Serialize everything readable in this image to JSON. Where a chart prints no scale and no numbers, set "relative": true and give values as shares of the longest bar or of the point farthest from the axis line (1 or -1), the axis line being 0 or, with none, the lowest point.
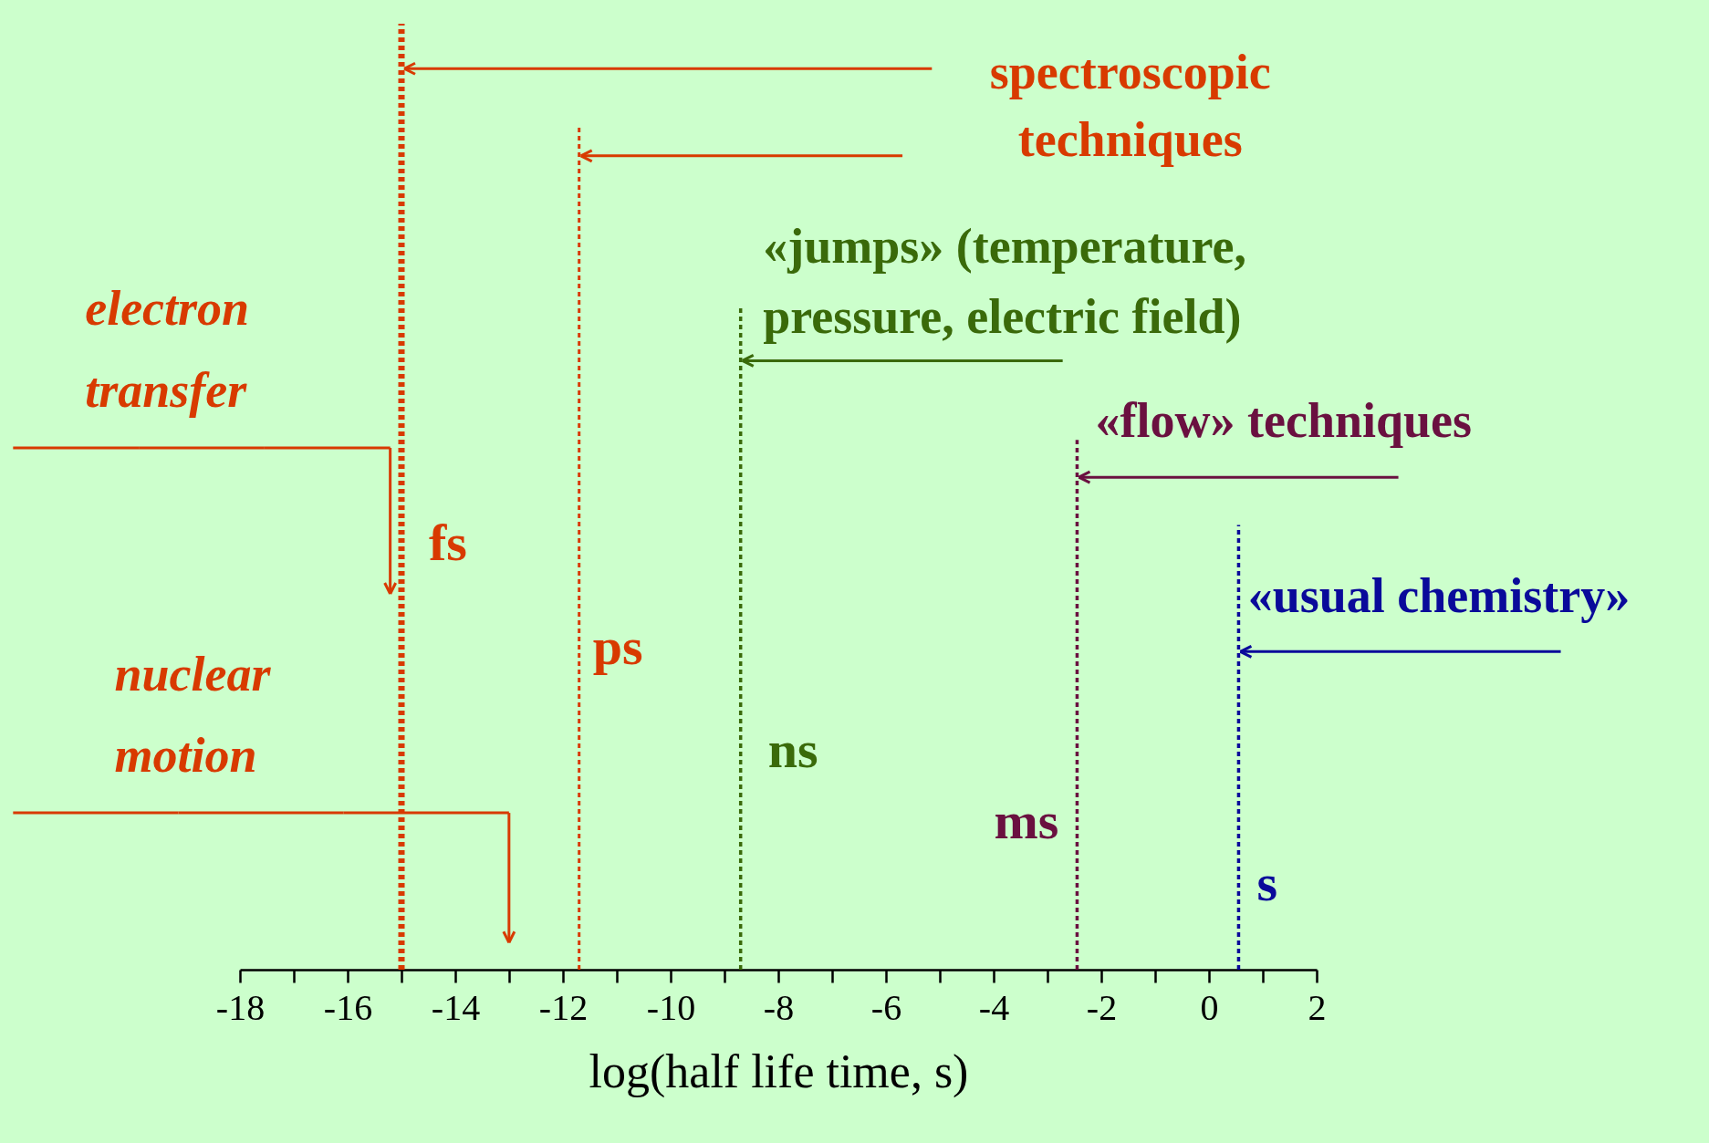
{
  "chart_data": {
    "type": "line",
    "relative": true,
    "marker": "none",
    "xlabel": "log(half life time, s)",
    "xlim": [
      -18,
      2
    ],
    "xticks": [
      -18,
      {
        "value": -17,
        "label": null
      },
      -16,
      {
        "value": -15,
        "label": null
      },
      -14,
      {
        "value": -13,
        "label": null
      },
      -12,
      {
        "value": -11,
        "label": null
      },
      -10,
      {
        "value": -9,
        "label": null
      },
      -8,
      {
        "value": -7,
        "label": null
      },
      -6,
      {
        "value": -5,
        "label": null
      },
      -4,
      {
        "value": -3,
        "label": null
      },
      -2,
      {
        "value": -1,
        "label": null
      },
      0,
      {
        "value": 1,
        "label": null
      },
      2
    ],
    "tick_labels": "x",
    "series": [
      {
        "name": "fs",
        "color": "#d83a00",
        "line_style": "dotted",
        "x": [
          -15,
          -15
        ],
        "values": [
          0,
          1
        ]
      },
      {
        "name": "ps",
        "color": "#d83a00",
        "line_style": "dotted",
        "x": [
          -11.7,
          -11.7
        ],
        "values": [
          0,
          0.89
        ]
      },
      {
        "name": "ns",
        "color": "#3a6a0a",
        "line_style": "dotted",
        "x": [
          -8.7,
          -8.7
        ],
        "values": [
          0,
          0.7
        ]
      },
      {
        "name": "ms",
        "color": "#6a1040",
        "line_style": "dotted",
        "x": [
          -2.45,
          -2.45
        ],
        "values": [
          0,
          0.56
        ]
      },
      {
        "name": "s",
        "color": "#0a0a9a",
        "line_style": "dotted",
        "x": [
          0.55,
          0.55
        ],
        "values": [
          0,
          0.47
        ]
      }
    ],
    "annotations": [
      "spectroscopic techniques",
      "«jumps» (temperature, pressure, electric field)",
      "«flow» techniques",
      "«usual chemistry»",
      "electron transfer",
      "nuclear motion"
    ]
  }
}
